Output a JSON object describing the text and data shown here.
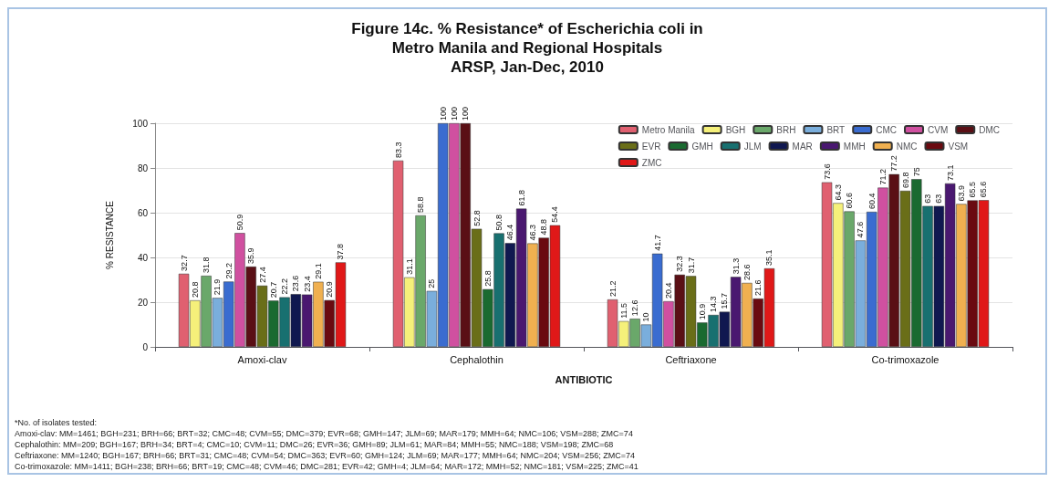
{
  "chart_data": {
    "type": "bar",
    "title": "Figure 14c. % Resistance* of Escherichia coli in\nMetro Manila and Regional Hospitals\nARSP, Jan-Dec, 2010",
    "xlabel": "ANTIBIOTIC",
    "ylabel": "% RESISTANCE",
    "categories": [
      "Amoxi-clav",
      "Cephalothin",
      "Ceftriaxone",
      "Co-trimoxazole"
    ],
    "series": [
      {
        "name": "Metro Manila",
        "color": "#e06070",
        "values": [
          32.7,
          83.3,
          21.2,
          73.6
        ]
      },
      {
        "name": "BGH",
        "color": "#f5f07a",
        "values": [
          20.8,
          31.1,
          11.5,
          64.3
        ]
      },
      {
        "name": "BRH",
        "color": "#6aa86a",
        "values": [
          31.8,
          58.8,
          12.6,
          60.6
        ]
      },
      {
        "name": "BRT",
        "color": "#7aaedc",
        "values": [
          21.9,
          25.0,
          10.0,
          47.6
        ]
      },
      {
        "name": "CMC",
        "color": "#3a6cd0",
        "values": [
          29.2,
          100,
          41.7,
          60.4
        ]
      },
      {
        "name": "CVM",
        "color": "#d050a0",
        "values": [
          50.9,
          100,
          20.4,
          71.2
        ]
      },
      {
        "name": "DMC",
        "color": "#5a0f15",
        "values": [
          35.9,
          100,
          32.3,
          77.2
        ]
      },
      {
        "name": "EVR",
        "color": "#6a6e18",
        "values": [
          27.4,
          52.8,
          31.7,
          69.8
        ]
      },
      {
        "name": "GMH",
        "color": "#1a6a30",
        "values": [
          20.7,
          25.8,
          10.9,
          75
        ]
      },
      {
        "name": "JLM",
        "color": "#187070",
        "values": [
          22.2,
          50.8,
          14.3,
          63.0
        ]
      },
      {
        "name": "MAR",
        "color": "#101850",
        "values": [
          23.6,
          46.4,
          15.7,
          63.0
        ]
      },
      {
        "name": "MMH",
        "color": "#4a1870",
        "values": [
          23.4,
          61.8,
          31.3,
          73.1
        ]
      },
      {
        "name": "NMC",
        "color": "#f0b050",
        "values": [
          29.1,
          46.3,
          28.6,
          63.9
        ]
      },
      {
        "name": "VSM",
        "color": "#6a0a10",
        "values": [
          20.9,
          48.8,
          21.6,
          65.5
        ]
      },
      {
        "name": "ZMC",
        "color": "#e01818",
        "values": [
          37.8,
          54.4,
          35.1,
          65.6
        ]
      }
    ],
    "ylim": [
      0,
      100
    ],
    "yticks": [
      0,
      20,
      40,
      60,
      80,
      100
    ],
    "grid": "y",
    "legend": "top right",
    "data_labels": true,
    "annotations": [
      "*No. of isolates tested:",
      "Amoxi-clav: MM=1461; BGH=231; BRH=66; BRT=32; CMC=48; CVM=55; DMC=379; EVR=68; GMH=147; JLM=69; MAR=179; MMH=64; NMC=106; VSM=288; ZMC=74",
      "Cephalothin: MM=209; BGH=167; BRH=34; BRT=4; CMC=10; CVM=11; DMC=26; EVR=36; GMH=89; JLM=61; MAR=84; MMH=55; NMC=188; VSM=198; ZMC=68",
      "Ceftriaxone: MM=1240; BGH=167; BRH=66; BRT=31; CMC=48; CVM=54; DMC=363; EVR=60; GMH=124; JLM=69; MAR=177; MMH=64; NMC=204; VSM=256; ZMC=74",
      "Co-trimoxazole: MM=1411; BGH=238; BRH=66; BRT=19; CMC=48; CVM=46; DMC=281; EVR=42; GMH=4; JLM=64; MAR=172; MMH=52; NMC=181; VSM=225; ZMC=41"
    ]
  }
}
